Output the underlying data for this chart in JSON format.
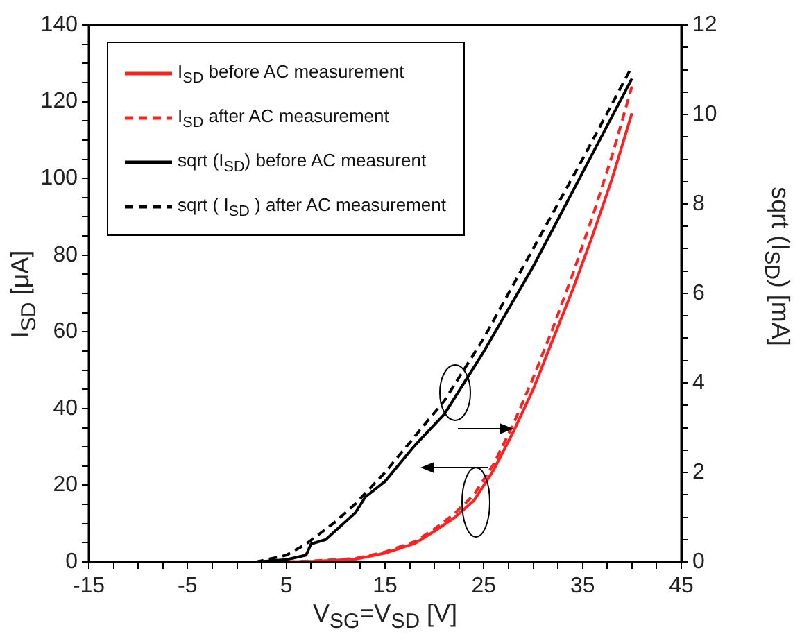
{
  "chart_data": {
    "type": "line",
    "xlabel": "V$_{SG}$=V$_{SD}$ [V]",
    "ylabel": "I$_{SD}$ [μA]",
    "y2label": "sqrt (I$_{SD}$) [mA]",
    "xlim": [
      -15,
      45
    ],
    "xticks": [
      -15,
      {
        "value": -12.5,
        "label": null
      },
      {
        "value": -10,
        "label": null
      },
      {
        "value": -7.5,
        "label": null
      },
      -5,
      {
        "value": -2.5,
        "label": null
      },
      {
        "value": 0,
        "label": null
      },
      {
        "value": 2.5,
        "label": null
      },
      5,
      {
        "value": 7.5,
        "label": null
      },
      {
        "value": 10,
        "label": null
      },
      {
        "value": 12.5,
        "label": null
      },
      15,
      {
        "value": 17.5,
        "label": null
      },
      {
        "value": 20,
        "label": null
      },
      {
        "value": 22.5,
        "label": null
      },
      25,
      {
        "value": 27.5,
        "label": null
      },
      {
        "value": 30,
        "label": null
      },
      {
        "value": 32.5,
        "label": null
      },
      35,
      {
        "value": 37.5,
        "label": null
      },
      {
        "value": 40,
        "label": null
      },
      {
        "value": 42.5,
        "label": null
      },
      45
    ],
    "ylim": [
      0,
      140
    ],
    "yticks": [
      0,
      {
        "value": 5,
        "label": null
      },
      {
        "value": 10,
        "label": null
      },
      {
        "value": 15,
        "label": null
      },
      20,
      {
        "value": 25,
        "label": null
      },
      {
        "value": 30,
        "label": null
      },
      {
        "value": 35,
        "label": null
      },
      40,
      {
        "value": 45,
        "label": null
      },
      {
        "value": 50,
        "label": null
      },
      {
        "value": 55,
        "label": null
      },
      60,
      {
        "value": 65,
        "label": null
      },
      {
        "value": 70,
        "label": null
      },
      {
        "value": 75,
        "label": null
      },
      80,
      {
        "value": 85,
        "label": null
      },
      {
        "value": 90,
        "label": null
      },
      {
        "value": 95,
        "label": null
      },
      100,
      {
        "value": 105,
        "label": null
      },
      {
        "value": 110,
        "label": null
      },
      {
        "value": 115,
        "label": null
      },
      120,
      {
        "value": 125,
        "label": null
      },
      {
        "value": 130,
        "label": null
      },
      {
        "value": 135,
        "label": null
      },
      140
    ],
    "y2lim": [
      0,
      12
    ],
    "y2ticks": [
      0,
      {
        "value": 0.5,
        "label": null
      },
      {
        "value": 1,
        "label": null
      },
      {
        "value": 1.5,
        "label": null
      },
      2,
      {
        "value": 2.5,
        "label": null
      },
      {
        "value": 3,
        "label": null
      },
      {
        "value": 3.5,
        "label": null
      },
      4,
      {
        "value": 4.5,
        "label": null
      },
      {
        "value": 5,
        "label": null
      },
      {
        "value": 5.5,
        "label": null
      },
      6,
      {
        "value": 6.5,
        "label": null
      },
      {
        "value": 7,
        "label": null
      },
      {
        "value": 7.5,
        "label": null
      },
      8,
      {
        "value": 8.5,
        "label": null
      },
      {
        "value": 9,
        "label": null
      },
      {
        "value": 9.5,
        "label": null
      },
      10,
      {
        "value": 10.5,
        "label": null
      },
      {
        "value": 11,
        "label": null
      },
      {
        "value": 11.5,
        "label": null
      },
      12
    ],
    "grid": false,
    "legend": "top left",
    "marker": "none",
    "series": [
      {
        "name": "I$_{SD}$ before AC measurement",
        "color": "#ff2020",
        "line_style": "solid",
        "axis": "y",
        "x": [
          5,
          8,
          12,
          15,
          18,
          20,
          22,
          24,
          26,
          28,
          30,
          32,
          34,
          36,
          38,
          40
        ],
        "values": [
          0,
          0.2,
          0.7,
          2.3,
          4.8,
          8,
          11.5,
          16,
          24,
          34,
          45,
          58,
          71,
          85,
          100,
          117
        ]
      },
      {
        "name": "I$_{SD}$ after AC measurement",
        "color": "#ff2020",
        "line_style": "dashed",
        "axis": "y",
        "x": [
          5,
          8,
          12,
          15,
          18,
          20,
          22,
          24,
          26,
          28,
          30,
          32,
          34,
          36,
          38,
          40
        ],
        "values": [
          0,
          0.3,
          0.9,
          2.6,
          5.3,
          8.6,
          12.5,
          17.5,
          25.5,
          36,
          48,
          61,
          75,
          90,
          106,
          124
        ]
      },
      {
        "name": "sqrt (I$_{SD}$) before AC measurent",
        "color": "#000000",
        "line_style": "solid",
        "axis": "y2",
        "x": [
          -15,
          2,
          5,
          7,
          7.5,
          9,
          10,
          12,
          13,
          15,
          18,
          21,
          25,
          30,
          35,
          40
        ],
        "values": [
          0,
          0,
          0.05,
          0.15,
          0.4,
          0.5,
          0.7,
          1.1,
          1.45,
          1.8,
          2.6,
          3.3,
          4.7,
          6.6,
          8.7,
          10.8
        ]
      },
      {
        "name": "sqrt ( I$_{SD}$ ) after AC measurement",
        "color": "#000000",
        "line_style": "dashed",
        "axis": "y2",
        "x": [
          -15,
          2,
          5,
          7,
          10,
          12,
          15,
          18,
          21,
          25,
          30,
          35,
          40
        ],
        "values": [
          0,
          0,
          0.15,
          0.4,
          0.9,
          1.3,
          2,
          2.8,
          3.6,
          5,
          7,
          9,
          11.07
        ]
      }
    ]
  }
}
